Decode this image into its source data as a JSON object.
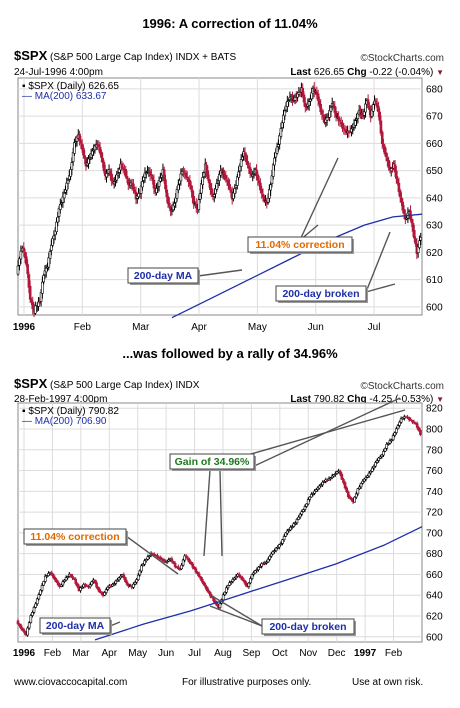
{
  "headings": {
    "top": "1996:  A correction of 11.04%",
    "middle": "...was followed by a rally of  34.96%"
  },
  "panels": [
    {
      "symbol": "$SPX",
      "index_name": "(S&P 500 Large Cap Index) INDX + BATS",
      "brand": "©StockCharts.com",
      "date": "24-Jul-1996 4:00pm",
      "last_label": "Last",
      "last_value": "626.65",
      "chg_label": "Chg",
      "chg_value": "-0.22 (-0.04%)",
      "legend_price": "$SPX (Daily) 626.65",
      "legend_ma": "MA(200) 633.67"
    },
    {
      "symbol": "$SPX",
      "index_name": "(S&P 500 Large Cap Index) INDX",
      "brand": "©StockCharts.com",
      "date": "28-Feb-1997 4:00pm",
      "last_label": "Last",
      "last_value": "790.82",
      "chg_label": "Chg",
      "chg_value": "-4.25 (-0.53%)",
      "legend_price": "$SPX (Daily) 790.82",
      "legend_ma": "MA(200) 706.90"
    }
  ],
  "footer": {
    "site": "www.ciovaccocapital.com",
    "note": "For illustrative purposes only.",
    "risk": "Use at own risk."
  },
  "colors": {
    "up": "#000000",
    "down": "#b0183c",
    "ma": "#1f2fa8",
    "correction_text": "#e06a00",
    "gain_text": "#1a7a1a",
    "ma_label_text": "#1f2fa8",
    "grid": "#dcdcdc",
    "tag_fill": "#e8edf5"
  },
  "chart_data": [
    {
      "type": "candlestick",
      "title": "1996:  A correction of 11.04%",
      "x_labels": [
        "1996",
        "Feb",
        "Mar",
        "Apr",
        "May",
        "Jun",
        "Jul"
      ],
      "y_ticks": [
        600,
        610,
        620,
        630,
        640,
        650,
        660,
        670,
        680
      ],
      "ylim": [
        597,
        684
      ],
      "y_axis_side": "right",
      "grid": true,
      "series": [
        {
          "name": "$SPX (Daily)",
          "points": [
            [
              0,
              612
            ],
            [
              3,
              618
            ],
            [
              6,
              622
            ],
            [
              10,
              616
            ],
            [
              14,
              603
            ],
            [
              18,
              598
            ],
            [
              20,
              600
            ],
            [
              24,
              602
            ],
            [
              28,
              612
            ],
            [
              32,
              615
            ],
            [
              36,
              623
            ],
            [
              40,
              628
            ],
            [
              44,
              636
            ],
            [
              48,
              640
            ],
            [
              52,
              645
            ],
            [
              56,
              650
            ],
            [
              60,
              660
            ],
            [
              64,
              663
            ],
            [
              68,
              658
            ],
            [
              72,
              652
            ],
            [
              76,
              655
            ],
            [
              80,
              658
            ],
            [
              84,
              660
            ],
            [
              88,
              655
            ],
            [
              92,
              648
            ],
            [
              96,
              650
            ],
            [
              100,
              645
            ],
            [
              104,
              648
            ],
            [
              108,
              652
            ],
            [
              112,
              650
            ],
            [
              116,
              645
            ],
            [
              120,
              645
            ],
            [
              124,
              640
            ],
            [
              128,
              642
            ],
            [
              132,
              648
            ],
            [
              136,
              650
            ],
            [
              140,
              648
            ],
            [
              144,
              642
            ],
            [
              148,
              646
            ],
            [
              152,
              650
            ],
            [
              156,
              640
            ],
            [
              160,
              635
            ],
            [
              164,
              638
            ],
            [
              168,
              645
            ],
            [
              172,
              650
            ],
            [
              176,
              648
            ],
            [
              180,
              645
            ],
            [
              184,
              638
            ],
            [
              188,
              636
            ],
            [
              192,
              645
            ],
            [
              196,
              652
            ],
            [
              200,
              645
            ],
            [
              204,
              640
            ],
            [
              208,
              645
            ],
            [
              212,
              650
            ],
            [
              216,
              648
            ],
            [
              220,
              645
            ],
            [
              224,
              640
            ],
            [
              228,
              645
            ],
            [
              232,
              652
            ],
            [
              236,
              657
            ],
            [
              240,
              652
            ],
            [
              244,
              648
            ],
            [
              248,
              650
            ],
            [
              252,
              645
            ],
            [
              256,
              640
            ],
            [
              260,
              638
            ],
            [
              264,
              645
            ],
            [
              268,
              655
            ],
            [
              272,
              660
            ],
            [
              276,
              668
            ],
            [
              280,
              674
            ],
            [
              284,
              677
            ],
            [
              288,
              676
            ],
            [
              292,
              678
            ],
            [
              296,
              680
            ],
            [
              300,
              673
            ],
            [
              304,
              675
            ],
            [
              308,
              680
            ],
            [
              312,
              678
            ],
            [
              316,
              672
            ],
            [
              320,
              668
            ],
            [
              324,
              670
            ],
            [
              328,
              675
            ],
            [
              332,
              670
            ],
            [
              336,
              668
            ],
            [
              340,
              665
            ],
            [
              344,
              664
            ],
            [
              348,
              665
            ],
            [
              352,
              668
            ],
            [
              356,
              672
            ],
            [
              360,
              670
            ],
            [
              364,
              676
            ],
            [
              368,
              670
            ],
            [
              372,
              676
            ],
            [
              376,
              672
            ],
            [
              380,
              660
            ],
            [
              384,
              655
            ],
            [
              388,
              650
            ],
            [
              392,
              652
            ],
            [
              396,
              645
            ],
            [
              400,
              638
            ],
            [
              404,
              632
            ],
            [
              408,
              635
            ],
            [
              412,
              628
            ],
            [
              416,
              620
            ],
            [
              420,
              626
            ]
          ]
        },
        {
          "name": "MA(200)",
          "points": [
            [
              160,
              596
            ],
            [
              200,
              603
            ],
            [
              240,
              610
            ],
            [
              280,
              617
            ],
            [
              320,
              624
            ],
            [
              360,
              630
            ],
            [
              390,
              633
            ],
            [
              420,
              634
            ]
          ]
        }
      ],
      "annotations": [
        "11.04% correction",
        "200-day MA",
        "200-day broken"
      ]
    },
    {
      "type": "candlestick",
      "title": "...was followed by a rally of  34.96%",
      "x_labels": [
        "1996",
        "Feb",
        "Mar",
        "Apr",
        "May",
        "Jun",
        "Jul",
        "Aug",
        "Sep",
        "Oct",
        "Nov",
        "Dec",
        "1997",
        "Feb"
      ],
      "y_ticks": [
        600,
        620,
        640,
        660,
        680,
        700,
        720,
        740,
        760,
        780,
        800,
        820
      ],
      "ylim": [
        595,
        825
      ],
      "y_axis_side": "right",
      "grid": true,
      "series": [
        {
          "name": "$SPX (Daily)",
          "points": [
            [
              0,
              615
            ],
            [
              5,
              608
            ],
            [
              10,
              602
            ],
            [
              15,
              620
            ],
            [
              20,
              632
            ],
            [
              25,
              645
            ],
            [
              30,
              658
            ],
            [
              35,
              662
            ],
            [
              40,
              655
            ],
            [
              45,
              648
            ],
            [
              50,
              655
            ],
            [
              55,
              660
            ],
            [
              60,
              655
            ],
            [
              65,
              645
            ],
            [
              70,
              650
            ],
            [
              75,
              648
            ],
            [
              80,
              655
            ],
            [
              85,
              645
            ],
            [
              90,
              640
            ],
            [
              95,
              648
            ],
            [
              100,
              650
            ],
            [
              105,
              655
            ],
            [
              110,
              660
            ],
            [
              115,
              650
            ],
            [
              120,
              648
            ],
            [
              125,
              655
            ],
            [
              130,
              668
            ],
            [
              135,
              675
            ],
            [
              140,
              680
            ],
            [
              145,
              678
            ],
            [
              150,
              675
            ],
            [
              155,
              672
            ],
            [
              160,
              675
            ],
            [
              165,
              668
            ],
            [
              170,
              665
            ],
            [
              175,
              678
            ],
            [
              180,
              672
            ],
            [
              185,
              665
            ],
            [
              190,
              658
            ],
            [
              195,
              650
            ],
            [
              200,
              642
            ],
            [
              205,
              635
            ],
            [
              210,
              628
            ],
            [
              215,
              640
            ],
            [
              220,
              650
            ],
            [
              225,
              655
            ],
            [
              230,
              660
            ],
            [
              235,
              655
            ],
            [
              240,
              648
            ],
            [
              245,
              660
            ],
            [
              250,
              665
            ],
            [
              255,
              670
            ],
            [
              260,
              672
            ],
            [
              265,
              680
            ],
            [
              270,
              685
            ],
            [
              275,
              690
            ],
            [
              280,
              700
            ],
            [
              285,
              705
            ],
            [
              290,
              710
            ],
            [
              295,
              718
            ],
            [
              300,
              725
            ],
            [
              305,
              735
            ],
            [
              310,
              740
            ],
            [
              315,
              745
            ],
            [
              320,
              750
            ],
            [
              325,
              752
            ],
            [
              330,
              756
            ],
            [
              335,
              760
            ],
            [
              340,
              748
            ],
            [
              345,
              735
            ],
            [
              350,
              730
            ],
            [
              355,
              742
            ],
            [
              360,
              750
            ],
            [
              365,
              755
            ],
            [
              370,
              762
            ],
            [
              375,
              770
            ],
            [
              380,
              775
            ],
            [
              385,
              785
            ],
            [
              390,
              790
            ],
            [
              395,
              800
            ],
            [
              400,
              810
            ],
            [
              405,
              812
            ],
            [
              410,
              808
            ],
            [
              415,
              805
            ],
            [
              420,
              795
            ]
          ]
        },
        {
          "name": "MA(200)",
          "points": [
            [
              80,
              597
            ],
            [
              130,
              612
            ],
            [
              180,
              625
            ],
            [
              230,
              640
            ],
            [
              280,
              655
            ],
            [
              330,
              670
            ],
            [
              380,
              688
            ],
            [
              420,
              706
            ]
          ]
        }
      ],
      "annotations": [
        "Gain of 34.96%",
        "11.04% correction",
        "200-day MA",
        "200-day broken"
      ]
    }
  ]
}
